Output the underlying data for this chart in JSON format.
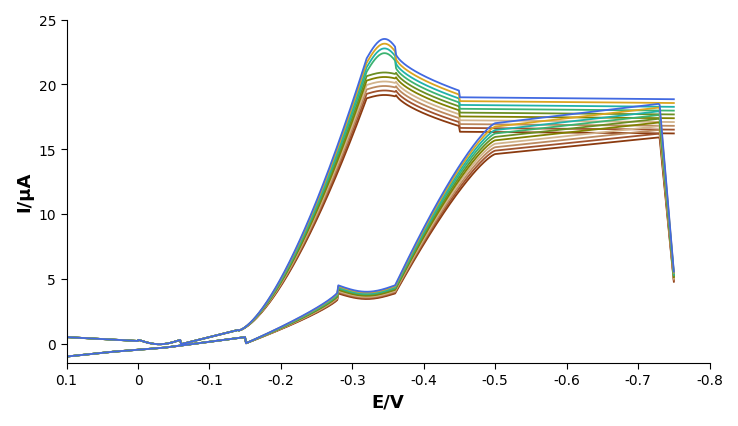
{
  "title": "",
  "xlabel": "E/V",
  "ylabel": "I/μA",
  "xlim": [
    0.1,
    -0.8
  ],
  "ylim": [
    -1.5,
    25
  ],
  "yticks": [
    0,
    5,
    10,
    15,
    20,
    25
  ],
  "xticks": [
    0.1,
    0.0,
    -0.1,
    -0.2,
    -0.3,
    -0.4,
    -0.5,
    -0.6,
    -0.7,
    -0.8
  ],
  "xtick_labels": [
    "0.1",
    "0",
    "-0.1",
    "-0.2",
    "-0.3",
    "-0.4",
    "-0.5",
    "-0.6",
    "-0.7",
    "-0.8"
  ],
  "n_cycles": 10,
  "colors": [
    "#8B3A0F",
    "#A0522D",
    "#BC8A5F",
    "#D2B48C",
    "#808000",
    "#6B8E23",
    "#3CB371",
    "#20B2AA",
    "#DAA520",
    "#4169E1"
  ],
  "background_color": "#FFFFFF",
  "figsize": [
    7.38,
    4.27
  ],
  "dpi": 100
}
